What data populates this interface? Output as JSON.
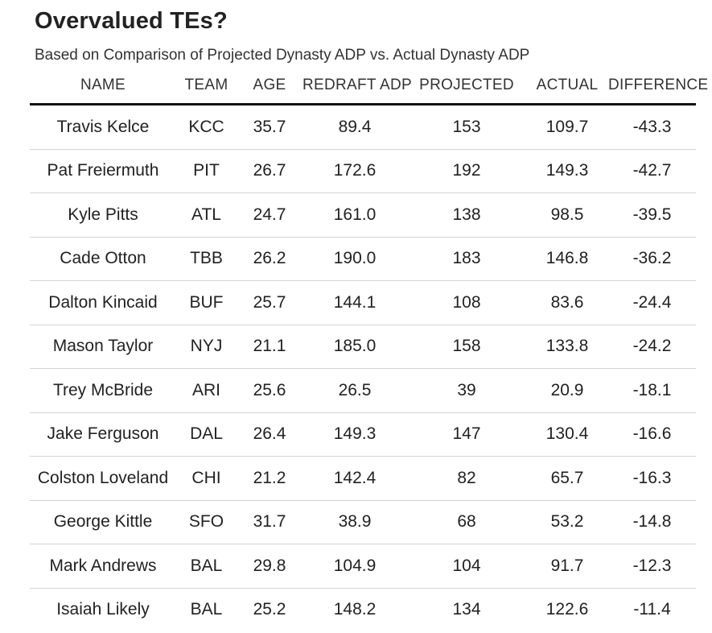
{
  "title": "Overvalued TEs?",
  "subtitle": "Based on Comparison of Projected Dynasty ADP vs. Actual Dynasty ADP",
  "chart_data": {
    "type": "table",
    "title": "Overvalued TEs?",
    "subtitle": "Based on Comparison of Projected Dynasty ADP vs. Actual Dynasty ADP",
    "columns": [
      "NAME",
      "TEAM",
      "AGE",
      "REDRAFT ADP",
      "PROJECTED",
      "ACTUAL",
      "DIFFERENCE"
    ],
    "rows": [
      [
        "Travis Kelce",
        "KCC",
        "35.7",
        "89.4",
        "153",
        "109.7",
        "-43.3"
      ],
      [
        "Pat Freiermuth",
        "PIT",
        "26.7",
        "172.6",
        "192",
        "149.3",
        "-42.7"
      ],
      [
        "Kyle Pitts",
        "ATL",
        "24.7",
        "161.0",
        "138",
        "98.5",
        "-39.5"
      ],
      [
        "Cade Otton",
        "TBB",
        "26.2",
        "190.0",
        "183",
        "146.8",
        "-36.2"
      ],
      [
        "Dalton Kincaid",
        "BUF",
        "25.7",
        "144.1",
        "108",
        "83.6",
        "-24.4"
      ],
      [
        "Mason Taylor",
        "NYJ",
        "21.1",
        "185.0",
        "158",
        "133.8",
        "-24.2"
      ],
      [
        "Trey McBride",
        "ARI",
        "25.6",
        "26.5",
        "39",
        "20.9",
        "-18.1"
      ],
      [
        "Jake Ferguson",
        "DAL",
        "26.4",
        "149.3",
        "147",
        "130.4",
        "-16.6"
      ],
      [
        "Colston Loveland",
        "CHI",
        "21.2",
        "142.4",
        "82",
        "65.7",
        "-16.3"
      ],
      [
        "George Kittle",
        "SFO",
        "31.7",
        "38.9",
        "68",
        "53.2",
        "-14.8"
      ],
      [
        "Mark Andrews",
        "BAL",
        "29.8",
        "104.9",
        "104",
        "91.7",
        "-12.3"
      ],
      [
        "Isaiah Likely",
        "BAL",
        "25.2",
        "148.2",
        "134",
        "122.6",
        "-11.4"
      ]
    ]
  }
}
